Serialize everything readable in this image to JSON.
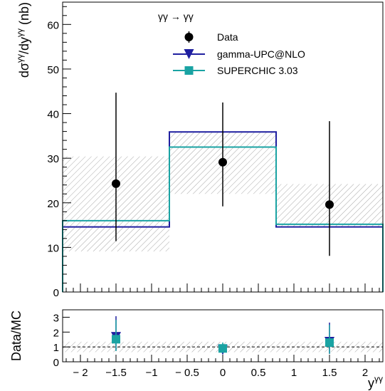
{
  "chart_data": [
    {
      "type": "line",
      "process": "γγ → γγ",
      "ylabel": "dσ^γγ/dy^γγ (nb)",
      "ylim": [
        0,
        65
      ],
      "yticks": [
        0,
        10,
        20,
        30,
        40,
        50,
        60
      ],
      "xlim": [
        -2.25,
        2.25
      ],
      "bins": [
        [
          -2.25,
          -0.75
        ],
        [
          -0.75,
          0.75
        ],
        [
          0.75,
          2.25
        ]
      ],
      "legend_position": "top-right",
      "legend": [
        "Data",
        "gamma-UPC@NLO",
        "SUPERCHIC 3.03"
      ],
      "series": [
        {
          "name": "Data",
          "style": "points",
          "color": "#000000",
          "x": [
            -1.5,
            0.0,
            1.5
          ],
          "y": [
            24.3,
            29.1,
            19.6
          ],
          "err_low": [
            12.9,
            9.9,
            11.5
          ],
          "err_high": [
            20.4,
            13.4,
            18.7
          ]
        },
        {
          "name": "gamma-UPC@NLO",
          "style": "histogram",
          "color": "#1f1fa0",
          "values": [
            14.6,
            35.9,
            14.6
          ]
        },
        {
          "name": "SUPERCHIC 3.03",
          "style": "histogram",
          "color": "#1aa3a3",
          "values": [
            16.0,
            32.5,
            15.2
          ]
        }
      ],
      "uncertainty_band": {
        "low": [
          9.1,
          22.0,
          14.6
        ],
        "high": [
          30.4,
          36.0,
          24.2
        ]
      }
    },
    {
      "type": "scatter",
      "ylabel": "Data/MC",
      "xlabel": "y^γγ",
      "ylim": [
        0,
        3.5
      ],
      "yticks": [
        0,
        1,
        2,
        3
      ],
      "xlim": [
        -2.25,
        2.25
      ],
      "xticks": [
        -2,
        -1.5,
        -1,
        -0.5,
        0,
        0.5,
        1,
        1.5,
        2
      ],
      "xtick_labels": [
        "− 2",
        "−1.5",
        "−1",
        "− 0.5",
        "0",
        "0.5",
        "1",
        "1.5",
        "2"
      ],
      "reference_line": 1,
      "band": [
        0.65,
        1.35
      ],
      "series": [
        {
          "name": "gamma-UPC@NLO",
          "marker": "triangle-down",
          "color": "#1f1fa0",
          "x": [
            -1.5,
            0.0,
            1.5
          ],
          "y": [
            1.67,
            0.81,
            1.34
          ],
          "err_low": [
            0.9,
            0.3,
            0.8
          ],
          "err_high": [
            1.4,
            0.4,
            1.3
          ]
        },
        {
          "name": "SUPERCHIC 3.03",
          "marker": "square",
          "color": "#1aa3a3",
          "x": [
            -1.5,
            0.0,
            1.5
          ],
          "y": [
            1.52,
            0.9,
            1.29
          ],
          "err_low": [
            0.8,
            0.3,
            0.75
          ],
          "err_high": [
            1.3,
            0.4,
            1.2
          ]
        }
      ]
    }
  ]
}
